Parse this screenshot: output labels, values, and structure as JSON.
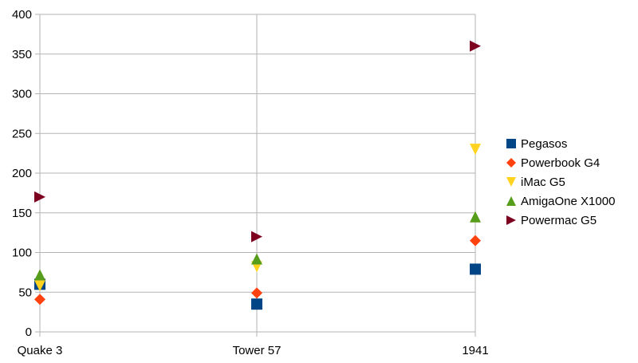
{
  "chart_data": {
    "type": "scatter",
    "categories": [
      "Quake 3",
      "Tower 57",
      "1941"
    ],
    "ylim": [
      0,
      400
    ],
    "yticks": [
      0,
      50,
      100,
      150,
      200,
      250,
      300,
      350,
      400
    ],
    "grid": true,
    "legend_position": "right",
    "series": [
      {
        "name": "Pegasos",
        "values": [
          60,
          35,
          79
        ],
        "color": "#004586",
        "marker": "square"
      },
      {
        "name": "Powerbook G4",
        "values": [
          41,
          49,
          115
        ],
        "color": "#ff420e",
        "marker": "diamond"
      },
      {
        "name": "iMac G5",
        "values": [
          58,
          82,
          230
        ],
        "color": "#ffd320",
        "marker": "triangle-down"
      },
      {
        "name": "AmigaOne X1000",
        "values": [
          72,
          92,
          145
        ],
        "color": "#579d1c",
        "marker": "triangle-up"
      },
      {
        "name": "Powermac G5",
        "values": [
          170,
          120,
          360
        ],
        "color": "#7e0021",
        "marker": "triangle-right"
      }
    ]
  }
}
